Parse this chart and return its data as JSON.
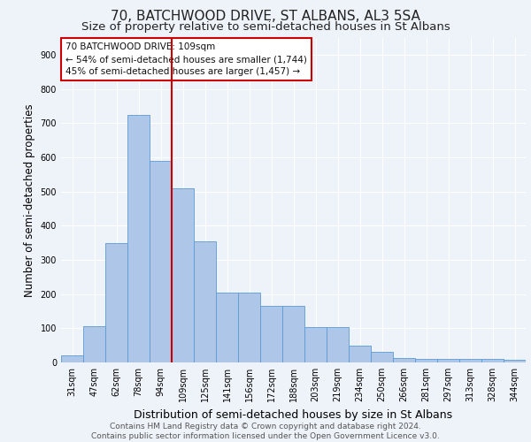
{
  "title": "70, BATCHWOOD DRIVE, ST ALBANS, AL3 5SA",
  "subtitle": "Size of property relative to semi-detached houses in St Albans",
  "xlabel": "Distribution of semi-detached houses by size in St Albans",
  "ylabel": "Number of semi-detached properties",
  "bar_labels": [
    "31sqm",
    "47sqm",
    "62sqm",
    "78sqm",
    "94sqm",
    "109sqm",
    "125sqm",
    "141sqm",
    "156sqm",
    "172sqm",
    "188sqm",
    "203sqm",
    "219sqm",
    "234sqm",
    "250sqm",
    "266sqm",
    "281sqm",
    "297sqm",
    "313sqm",
    "328sqm",
    "344sqm"
  ],
  "bar_values": [
    20,
    105,
    350,
    725,
    590,
    510,
    355,
    205,
    205,
    165,
    165,
    103,
    103,
    50,
    30,
    12,
    10,
    10,
    10,
    10,
    7
  ],
  "bar_color": "#aec6e8",
  "bar_edge_color": "#5b9bd5",
  "vline_index": 5,
  "vline_color": "#cc0000",
  "annotation_box_text": "70 BATCHWOOD DRIVE: 109sqm\n← 54% of semi-detached houses are smaller (1,744)\n45% of semi-detached houses are larger (1,457) →",
  "annotation_box_color": "#cc0000",
  "annotation_box_fill": "#ffffff",
  "ylim": [
    0,
    950
  ],
  "yticks": [
    0,
    100,
    200,
    300,
    400,
    500,
    600,
    700,
    800,
    900
  ],
  "footer": "Contains HM Land Registry data © Crown copyright and database right 2024.\nContains public sector information licensed under the Open Government Licence v3.0.",
  "background_color": "#eef2f9",
  "grid_color": "#ffffff",
  "title_fontsize": 11,
  "subtitle_fontsize": 9.5,
  "xlabel_fontsize": 9,
  "ylabel_fontsize": 8.5,
  "tick_fontsize": 7,
  "annotation_fontsize": 7.5,
  "footer_fontsize": 6.5
}
